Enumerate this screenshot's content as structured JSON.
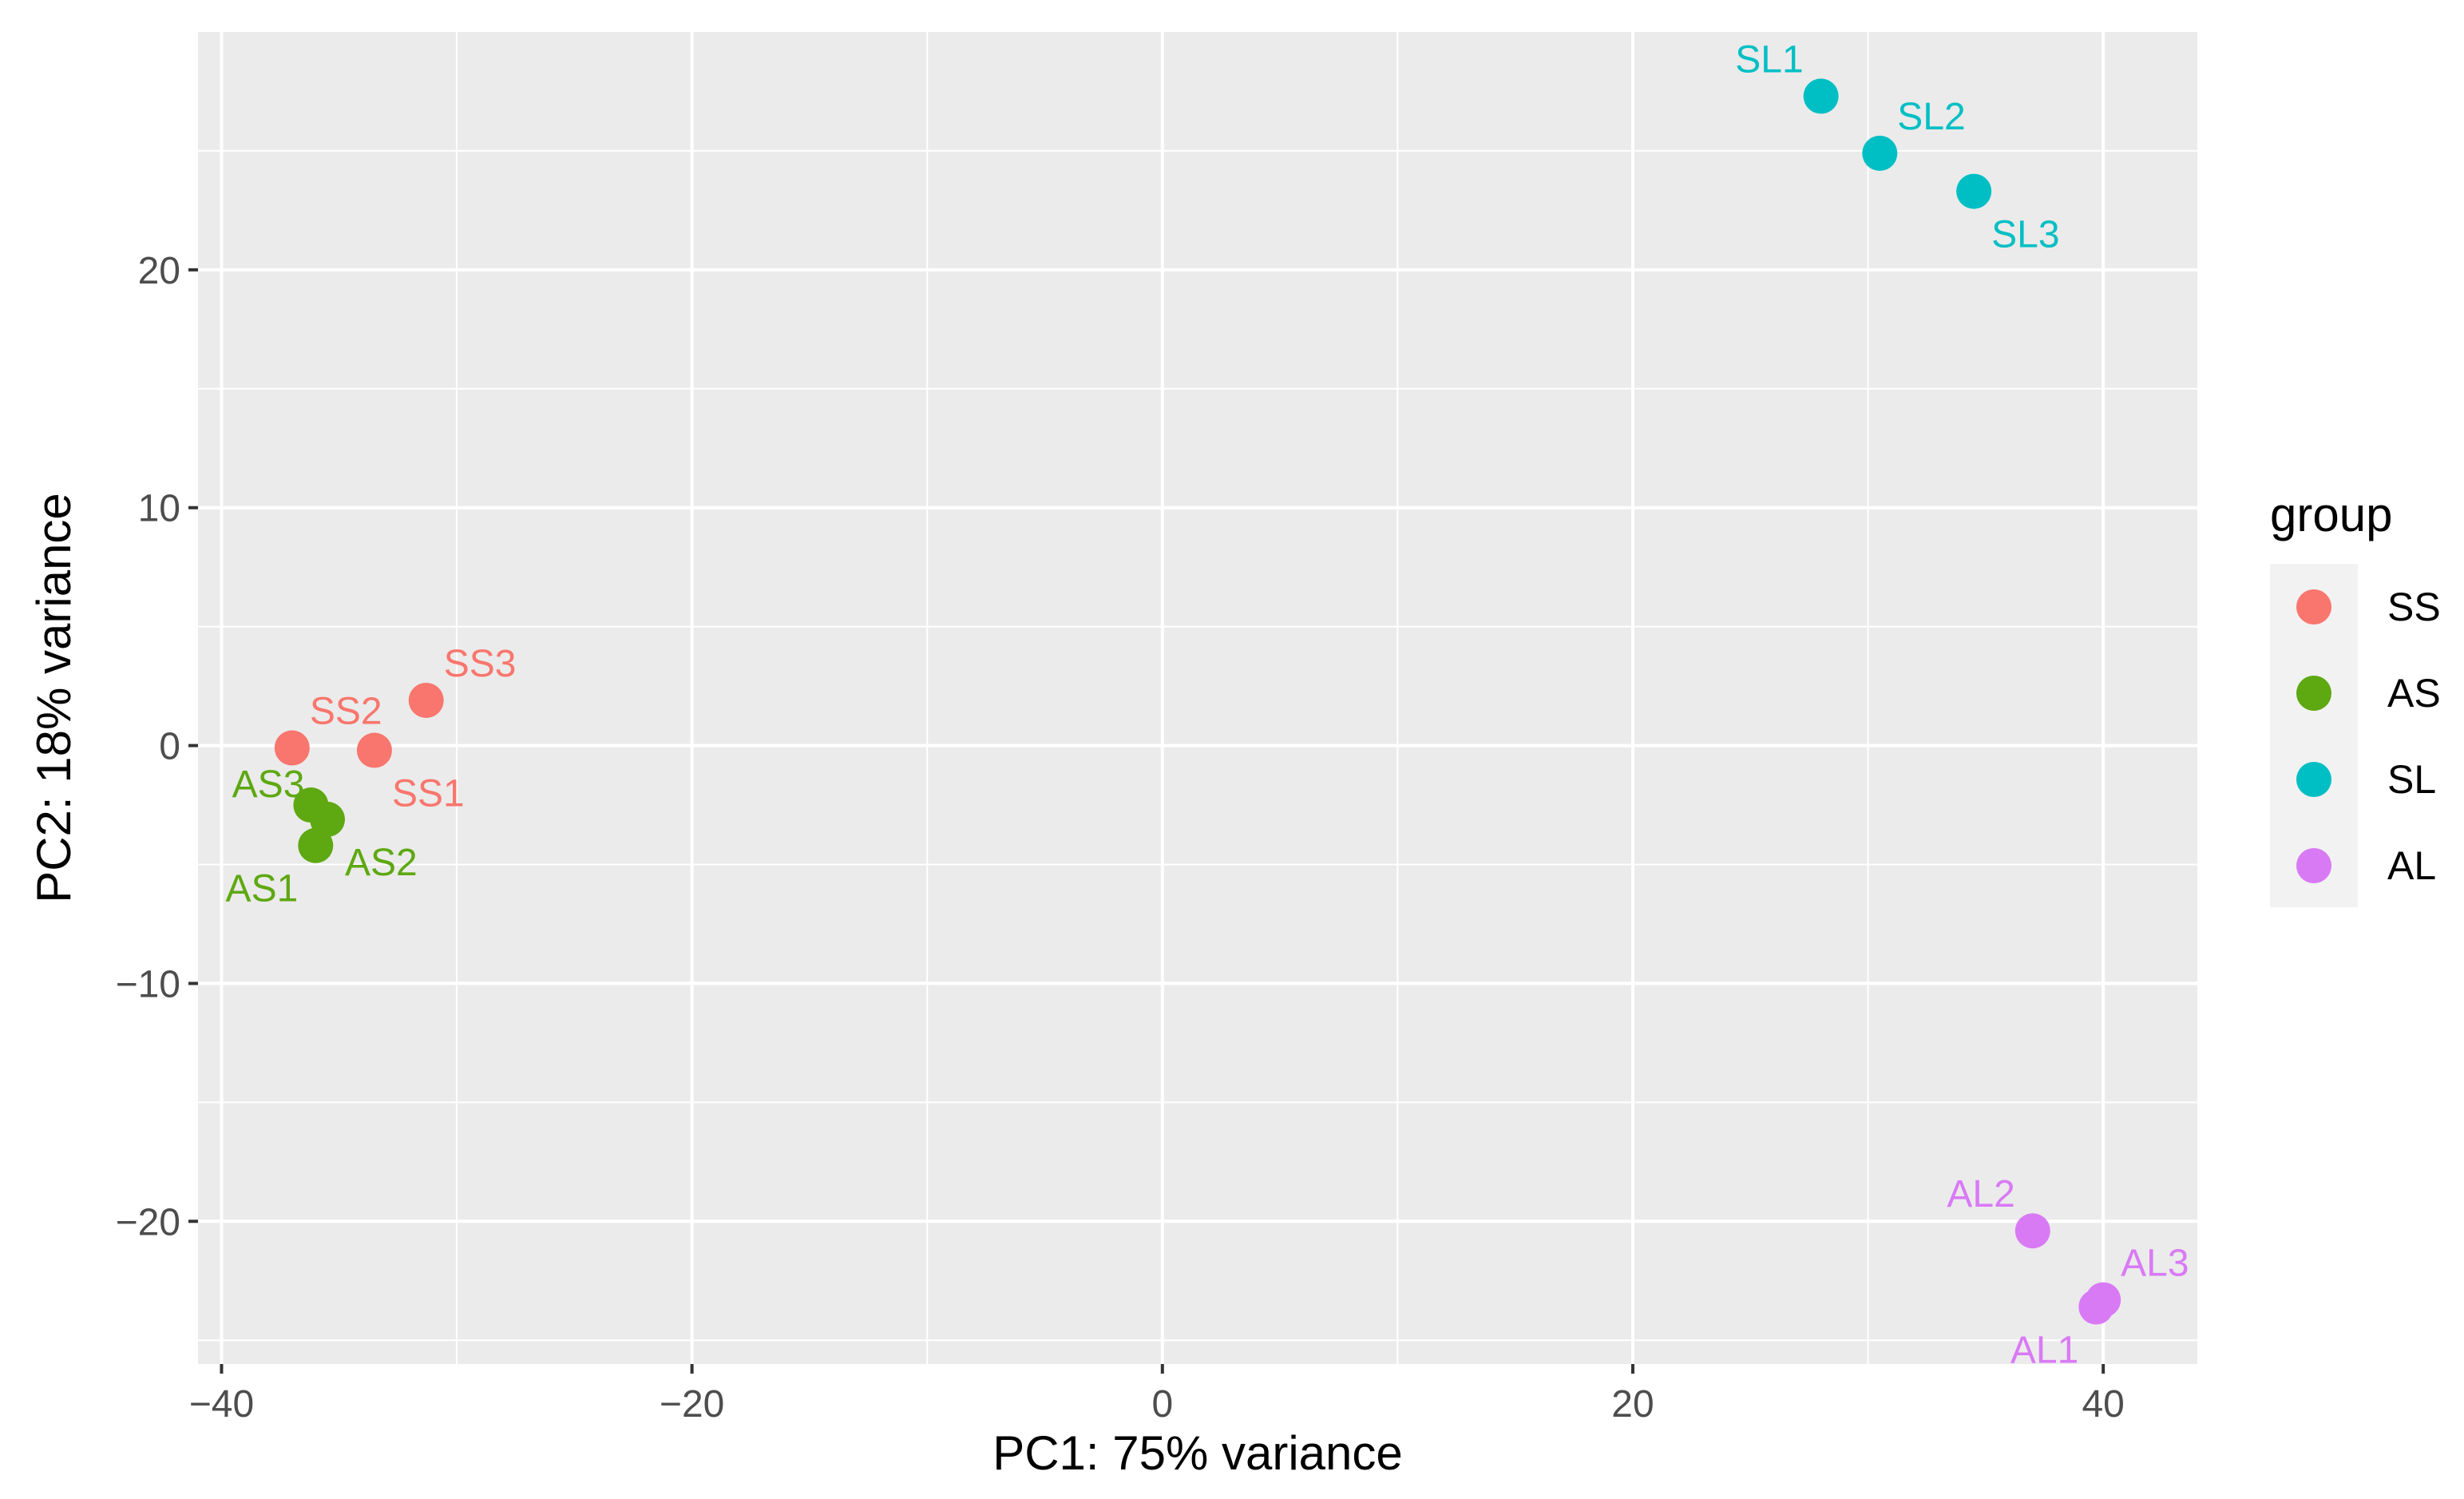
{
  "chart_data": {
    "type": "scatter",
    "title": "",
    "xlabel": "PC1: 75% variance",
    "ylabel": "PC2: 18% variance",
    "xlim": [
      -41,
      44
    ],
    "ylim": [
      -26,
      30
    ],
    "xticks": [
      -40,
      -20,
      0,
      20,
      40
    ],
    "yticks": [
      -20,
      -10,
      0,
      10,
      20
    ],
    "xtick_labels": [
      "−40",
      "−20",
      "0",
      "20",
      "40"
    ],
    "ytick_labels": [
      "−20",
      "−10",
      "0",
      "10",
      "20"
    ],
    "grid": true,
    "legend": {
      "title": "group",
      "placement": "right",
      "entries": [
        "SS",
        "AS",
        "SL",
        "AL"
      ]
    },
    "colors": {
      "SS": "#F8766D",
      "AS": "#5EA811",
      "SL": "#00BFC4",
      "AL": "#D97AF5",
      "panel": "#EBEBEB",
      "grid": "#FFFFFF",
      "axis_text": "#4D4D4D"
    },
    "series": [
      {
        "name": "SS",
        "points": [
          {
            "label": "SS1",
            "x": -33.5,
            "y": -0.2,
            "label_pos": "bottom-right"
          },
          {
            "label": "SS2",
            "x": -37.0,
            "y": -0.1,
            "label_pos": "top-right"
          },
          {
            "label": "SS3",
            "x": -31.3,
            "y": 1.9,
            "label_pos": "top-right"
          }
        ]
      },
      {
        "name": "AS",
        "points": [
          {
            "label": "AS1",
            "x": -36.0,
            "y": -4.2,
            "label_pos": "bottom-left"
          },
          {
            "label": "AS2",
            "x": -35.5,
            "y": -3.1,
            "label_pos": "bottom-right"
          },
          {
            "label": "AS3",
            "x": -36.2,
            "y": -2.5,
            "label_pos": "left"
          }
        ]
      },
      {
        "name": "SL",
        "points": [
          {
            "label": "SL1",
            "x": 28.0,
            "y": 27.3,
            "label_pos": "top-left"
          },
          {
            "label": "SL2",
            "x": 30.5,
            "y": 24.9,
            "label_pos": "top-right"
          },
          {
            "label": "SL3",
            "x": 34.5,
            "y": 23.3,
            "label_pos": "bottom-right"
          }
        ]
      },
      {
        "name": "AL",
        "points": [
          {
            "label": "AL1",
            "x": 39.7,
            "y": -23.6,
            "label_pos": "bottom-left"
          },
          {
            "label": "AL2",
            "x": 37.0,
            "y": -20.4,
            "label_pos": "top-left"
          },
          {
            "label": "AL3",
            "x": 40.0,
            "y": -23.3,
            "label_pos": "top-right"
          }
        ]
      }
    ]
  }
}
